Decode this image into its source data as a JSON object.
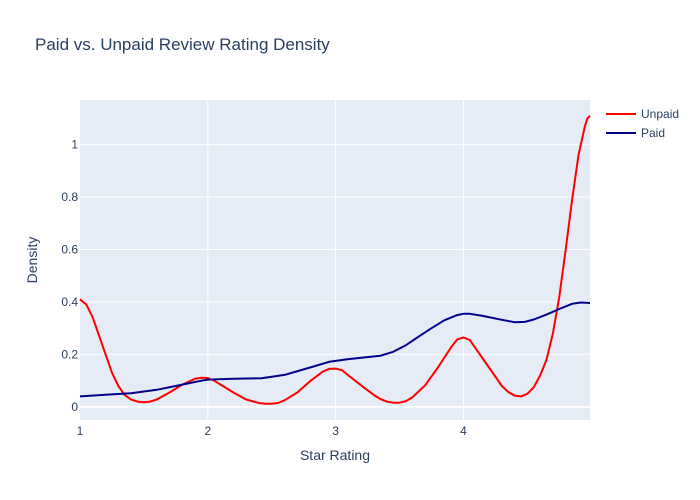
{
  "chart_data": {
    "type": "line",
    "title": "Paid vs. Unpaid Review Rating Density",
    "xlabel": "Star Rating",
    "ylabel": "Density",
    "xlim": [
      1,
      4.99
    ],
    "ylim": [
      -0.05,
      1.17
    ],
    "x_ticks": [
      {
        "value": 1,
        "label": "1"
      },
      {
        "value": 2,
        "label": "2"
      },
      {
        "value": 3,
        "label": "3"
      },
      {
        "value": 4,
        "label": "4"
      }
    ],
    "y_ticks": [
      {
        "value": 0,
        "label": "0"
      },
      {
        "value": 0.2,
        "label": "0.2"
      },
      {
        "value": 0.4,
        "label": "0.4"
      },
      {
        "value": 0.6,
        "label": "0.6"
      },
      {
        "value": 0.8,
        "label": "0.8"
      },
      {
        "value": 1,
        "label": "1"
      }
    ],
    "grid": true,
    "legend_position": "top-right",
    "background_color": "#e5ecf6",
    "series": [
      {
        "name": "Unpaid",
        "color": "#ff0000",
        "points": [
          [
            1.0,
            0.41
          ],
          [
            1.05,
            0.39
          ],
          [
            1.1,
            0.34
          ],
          [
            1.15,
            0.27
          ],
          [
            1.2,
            0.2
          ],
          [
            1.25,
            0.13
          ],
          [
            1.3,
            0.08
          ],
          [
            1.35,
            0.045
          ],
          [
            1.4,
            0.028
          ],
          [
            1.45,
            0.02
          ],
          [
            1.5,
            0.018
          ],
          [
            1.55,
            0.02
          ],
          [
            1.6,
            0.028
          ],
          [
            1.7,
            0.055
          ],
          [
            1.8,
            0.085
          ],
          [
            1.9,
            0.107
          ],
          [
            1.95,
            0.111
          ],
          [
            2.0,
            0.11
          ],
          [
            2.05,
            0.1
          ],
          [
            2.1,
            0.085
          ],
          [
            2.2,
            0.055
          ],
          [
            2.3,
            0.028
          ],
          [
            2.4,
            0.015
          ],
          [
            2.45,
            0.012
          ],
          [
            2.5,
            0.012
          ],
          [
            2.55,
            0.015
          ],
          [
            2.6,
            0.025
          ],
          [
            2.7,
            0.055
          ],
          [
            2.8,
            0.098
          ],
          [
            2.9,
            0.135
          ],
          [
            2.95,
            0.145
          ],
          [
            3.0,
            0.146
          ],
          [
            3.05,
            0.14
          ],
          [
            3.1,
            0.12
          ],
          [
            3.2,
            0.082
          ],
          [
            3.3,
            0.045
          ],
          [
            3.35,
            0.03
          ],
          [
            3.4,
            0.02
          ],
          [
            3.45,
            0.016
          ],
          [
            3.5,
            0.016
          ],
          [
            3.55,
            0.022
          ],
          [
            3.6,
            0.036
          ],
          [
            3.7,
            0.082
          ],
          [
            3.8,
            0.15
          ],
          [
            3.9,
            0.225
          ],
          [
            3.95,
            0.257
          ],
          [
            4.0,
            0.265
          ],
          [
            4.05,
            0.255
          ],
          [
            4.1,
            0.22
          ],
          [
            4.2,
            0.15
          ],
          [
            4.3,
            0.08
          ],
          [
            4.35,
            0.057
          ],
          [
            4.4,
            0.043
          ],
          [
            4.45,
            0.04
          ],
          [
            4.5,
            0.05
          ],
          [
            4.55,
            0.075
          ],
          [
            4.6,
            0.12
          ],
          [
            4.65,
            0.18
          ],
          [
            4.7,
            0.28
          ],
          [
            4.75,
            0.42
          ],
          [
            4.8,
            0.6
          ],
          [
            4.85,
            0.79
          ],
          [
            4.9,
            0.96
          ],
          [
            4.95,
            1.07
          ],
          [
            4.97,
            1.1
          ],
          [
            4.99,
            1.11
          ]
        ]
      },
      {
        "name": "Paid",
        "color": "#00008b",
        "points": [
          [
            1.0,
            0.04
          ],
          [
            1.2,
            0.046
          ],
          [
            1.4,
            0.052
          ],
          [
            1.6,
            0.065
          ],
          [
            1.8,
            0.085
          ],
          [
            1.95,
            0.1
          ],
          [
            2.0,
            0.104
          ],
          [
            2.2,
            0.107
          ],
          [
            2.42,
            0.109
          ],
          [
            2.6,
            0.122
          ],
          [
            2.8,
            0.15
          ],
          [
            2.95,
            0.172
          ],
          [
            3.1,
            0.182
          ],
          [
            3.2,
            0.187
          ],
          [
            3.35,
            0.195
          ],
          [
            3.45,
            0.21
          ],
          [
            3.55,
            0.235
          ],
          [
            3.65,
            0.268
          ],
          [
            3.75,
            0.3
          ],
          [
            3.85,
            0.33
          ],
          [
            3.95,
            0.35
          ],
          [
            4.0,
            0.355
          ],
          [
            4.05,
            0.355
          ],
          [
            4.15,
            0.347
          ],
          [
            4.3,
            0.332
          ],
          [
            4.4,
            0.323
          ],
          [
            4.48,
            0.324
          ],
          [
            4.55,
            0.333
          ],
          [
            4.65,
            0.352
          ],
          [
            4.75,
            0.373
          ],
          [
            4.85,
            0.393
          ],
          [
            4.92,
            0.398
          ],
          [
            4.99,
            0.396
          ]
        ]
      }
    ]
  }
}
